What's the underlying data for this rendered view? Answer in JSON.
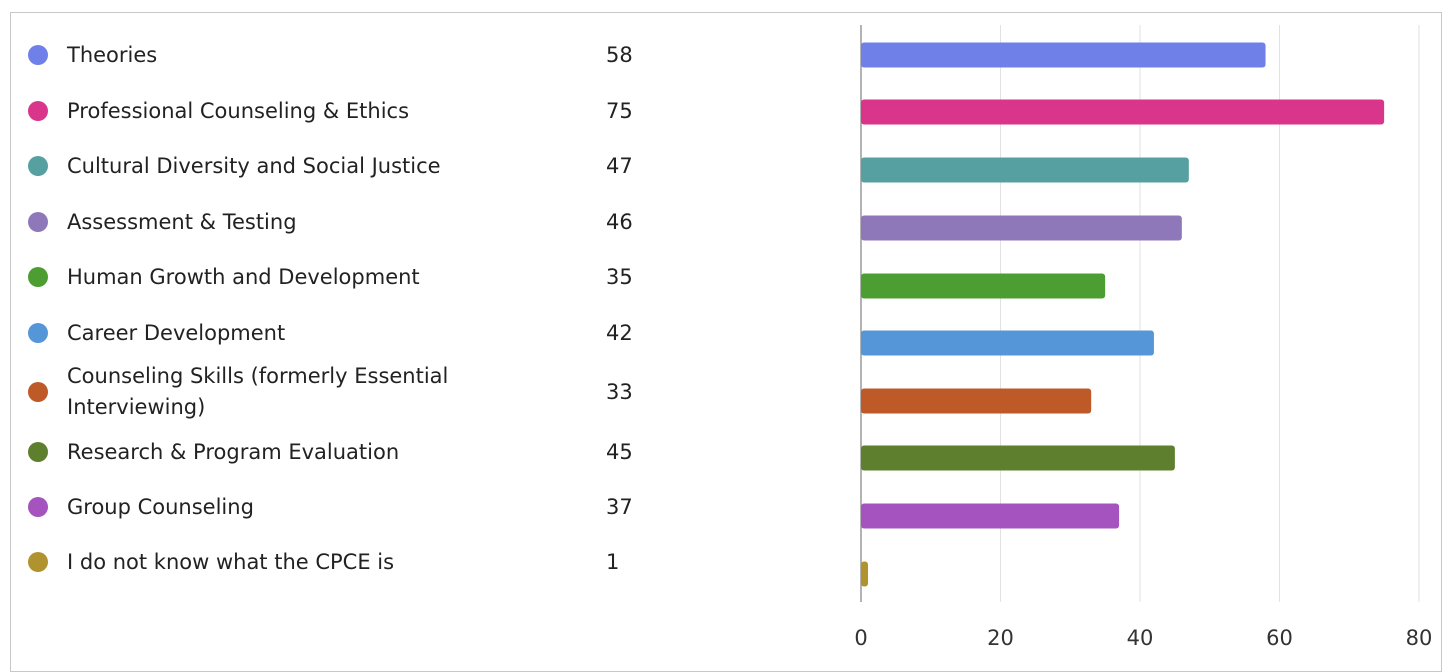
{
  "chart_data": {
    "type": "bar",
    "orientation": "horizontal",
    "categories": [
      "Theories",
      "Professional Counseling & Ethics",
      "Cultural Diversity and Social Justice",
      "Assessment & Testing",
      "Human Growth and Development",
      "Career Development",
      "Counseling Skills (formerly Essential Interviewing)",
      "Research & Program Evaluation",
      "Group Counseling",
      "I do not know what the CPCE is"
    ],
    "values": [
      58,
      75,
      47,
      46,
      35,
      42,
      33,
      45,
      37,
      1
    ],
    "colors": [
      "#6f80e8",
      "#d9368b",
      "#56a0a2",
      "#8f78ba",
      "#4d9e32",
      "#5596d8",
      "#bd5a28",
      "#5e7f2e",
      "#a554bf",
      "#b0932f"
    ],
    "xlim": [
      0,
      80
    ],
    "xticks": [
      0,
      20,
      40,
      60,
      80
    ],
    "grid": true,
    "legend": "left"
  }
}
